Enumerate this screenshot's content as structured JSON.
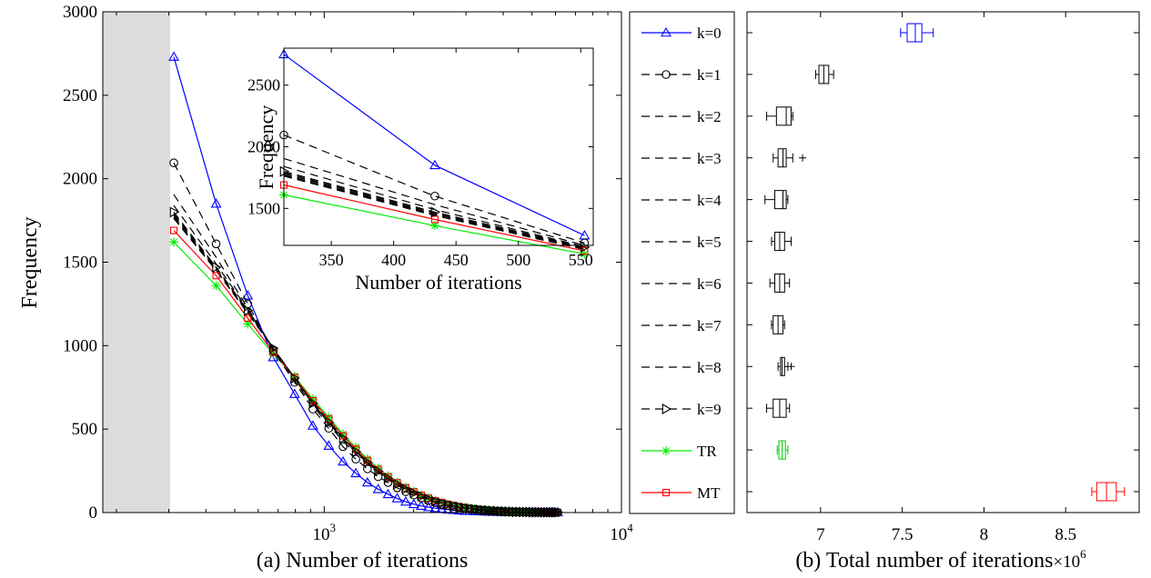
{
  "chart_data": [
    {
      "id": "a",
      "type": "line",
      "xlabel": "(a) Number of iterations",
      "ylabel": "Frequency",
      "xscale": "log",
      "xlim": [
        180,
        10000
      ],
      "ylim": [
        0,
        3000
      ],
      "xtick_labels": [
        "10",
        "10"
      ],
      "xtick_exponents": [
        "3",
        "4"
      ],
      "xticks": [
        1000,
        10000
      ],
      "yticks": [
        0,
        500,
        1000,
        1500,
        2000,
        2500,
        3000
      ],
      "ytick_labels": [
        "0",
        "500",
        "1000",
        "1500",
        "2000",
        "2500",
        "3000"
      ],
      "shaded_region": [
        180,
        312
      ],
      "x": [
        312,
        433,
        553,
        674,
        795,
        916,
        1036,
        1157,
        1278,
        1398,
        1519,
        1640,
        1760,
        1881,
        2002,
        2122,
        2243,
        2364,
        2485,
        2605,
        2726,
        2847,
        2967,
        3088,
        3209,
        3329,
        3450,
        3571,
        3691,
        3812,
        3933,
        4053,
        4174,
        4295,
        4416,
        4536,
        4657,
        4778,
        4898,
        5019,
        5140,
        5260,
        5381,
        5502,
        5622,
        5743,
        5864,
        5984,
        6105
      ],
      "series": [
        {
          "name": "k=0",
          "color": "#0000ff",
          "marker": "triangle-up",
          "values": [
            2730,
            1850,
            1300,
            930,
            710,
            520,
            400,
            305,
            235,
            180,
            140,
            110,
            85,
            65,
            50,
            40,
            32,
            26,
            22,
            18,
            15,
            12,
            10,
            9,
            8,
            7,
            6,
            5,
            5,
            4,
            4,
            3,
            3,
            3,
            2,
            2,
            2,
            2,
            2,
            2,
            1,
            1,
            1,
            1,
            1,
            1,
            1,
            1,
            1
          ]
        },
        {
          "name": "k=1",
          "color": "#000000",
          "marker": "circle",
          "values": [
            2095,
            1610,
            1250,
            970,
            780,
            620,
            505,
            395,
            320,
            262,
            215,
            180,
            148,
            125,
            105,
            87,
            72,
            60,
            50,
            42,
            35,
            30,
            25,
            21,
            18,
            15,
            13,
            11,
            9,
            8,
            7,
            6,
            5,
            5,
            4,
            4,
            3,
            3,
            3,
            2,
            2,
            2,
            2,
            2,
            1,
            1,
            1,
            1,
            1
          ]
        },
        {
          "name": "k=2",
          "color": "#000000",
          "marker": "none",
          "values": [
            1905,
            1530,
            1225,
            980,
            790,
            640,
            525,
            430,
            350,
            288,
            238,
            197,
            163,
            136,
            113,
            94,
            78,
            65,
            54,
            45,
            38,
            32,
            27,
            23,
            19,
            16,
            14,
            12,
            10,
            9,
            7,
            6,
            5,
            5,
            4,
            4,
            3,
            3,
            3,
            2,
            2,
            2,
            2,
            1,
            1,
            1,
            1,
            1,
            1
          ]
        },
        {
          "name": "k=3",
          "color": "#000000",
          "marker": "none",
          "values": [
            1840,
            1490,
            1215,
            985,
            800,
            650,
            535,
            440,
            360,
            297,
            245,
            203,
            168,
            140,
            117,
            97,
            81,
            67,
            56,
            47,
            40,
            33,
            28,
            24,
            20,
            17,
            14,
            12,
            10,
            9,
            8,
            7,
            6,
            5,
            4,
            4,
            3,
            3,
            3,
            2,
            2,
            2,
            2,
            1,
            1,
            1,
            1,
            1,
            1
          ]
        },
        {
          "name": "k=4",
          "color": "#000000",
          "marker": "none",
          "values": [
            1790,
            1465,
            1205,
            985,
            805,
            655,
            540,
            445,
            365,
            301,
            249,
            206,
            171,
            142,
            119,
            99,
            82,
            69,
            57,
            48,
            40,
            34,
            29,
            24,
            20,
            17,
            15,
            13,
            11,
            9,
            8,
            7,
            6,
            5,
            4,
            4,
            3,
            3,
            3,
            2,
            2,
            2,
            2,
            1,
            1,
            1,
            1,
            1,
            1
          ]
        },
        {
          "name": "k=5",
          "color": "#000000",
          "marker": "none",
          "values": [
            1780,
            1460,
            1200,
            985,
            805,
            660,
            545,
            448,
            368,
            303,
            250,
            208,
            172,
            143,
            120,
            100,
            83,
            69,
            58,
            48,
            41,
            34,
            29,
            24,
            21,
            17,
            15,
            13,
            11,
            9,
            8,
            7,
            6,
            5,
            4,
            4,
            3,
            3,
            3,
            2,
            2,
            2,
            2,
            1,
            1,
            1,
            1,
            1,
            1
          ]
        },
        {
          "name": "k=6",
          "color": "#000000",
          "marker": "none",
          "values": [
            1770,
            1455,
            1198,
            985,
            806,
            661,
            546,
            449,
            369,
            304,
            251,
            208,
            173,
            144,
            120,
            100,
            83,
            70,
            58,
            49,
            41,
            34,
            29,
            25,
            21,
            18,
            15,
            13,
            11,
            9,
            8,
            7,
            6,
            5,
            4,
            4,
            3,
            3,
            3,
            2,
            2,
            2,
            2,
            1,
            1,
            1,
            1,
            1,
            1
          ]
        },
        {
          "name": "k=7",
          "color": "#000000",
          "marker": "none",
          "values": [
            1765,
            1452,
            1196,
            984,
            806,
            662,
            547,
            450,
            370,
            305,
            252,
            209,
            173,
            144,
            121,
            101,
            84,
            70,
            58,
            49,
            41,
            35,
            29,
            25,
            21,
            18,
            15,
            13,
            11,
            9,
            8,
            7,
            6,
            5,
            4,
            4,
            3,
            3,
            3,
            2,
            2,
            2,
            2,
            1,
            1,
            1,
            1,
            1,
            1
          ]
        },
        {
          "name": "k=8",
          "color": "#000000",
          "marker": "none",
          "values": [
            1762,
            1450,
            1195,
            984,
            806,
            662,
            547,
            450,
            370,
            305,
            252,
            209,
            173,
            145,
            121,
            101,
            84,
            70,
            58,
            49,
            41,
            35,
            29,
            25,
            21,
            18,
            15,
            13,
            11,
            9,
            8,
            7,
            6,
            5,
            4,
            4,
            3,
            3,
            3,
            2,
            2,
            2,
            2,
            1,
            1,
            1,
            1,
            1,
            1
          ]
        },
        {
          "name": "k=9",
          "color": "#000000",
          "marker": "triangle-right",
          "values": [
            1800,
            1470,
            1210,
            985,
            805,
            655,
            540,
            445,
            365,
            300,
            248,
            205,
            170,
            142,
            118,
            98,
            82,
            68,
            57,
            48,
            40,
            34,
            28,
            24,
            20,
            17,
            14,
            12,
            10,
            9,
            8,
            7,
            6,
            5,
            4,
            4,
            3,
            3,
            3,
            2,
            2,
            2,
            2,
            1,
            1,
            1,
            1,
            1,
            1
          ]
        },
        {
          "name": "TR",
          "color": "#00ee00",
          "marker": "star",
          "values": [
            1620,
            1360,
            1130,
            950,
            815,
            680,
            570,
            470,
            390,
            322,
            265,
            220,
            183,
            152,
            127,
            106,
            88,
            73,
            61,
            51,
            43,
            36,
            30,
            26,
            22,
            18,
            16,
            13,
            11,
            10,
            8,
            7,
            6,
            5,
            5,
            4,
            4,
            3,
            3,
            2,
            2,
            2,
            2,
            1,
            1,
            1,
            1,
            1,
            1
          ]
        },
        {
          "name": "MT",
          "color": "#ff0000",
          "marker": "square",
          "values": [
            1690,
            1420,
            1165,
            960,
            810,
            670,
            560,
            460,
            380,
            312,
            258,
            214,
            178,
            148,
            124,
            103,
            86,
            71,
            60,
            50,
            42,
            35,
            30,
            25,
            21,
            18,
            15,
            13,
            11,
            9,
            8,
            7,
            6,
            5,
            4,
            4,
            3,
            3,
            3,
            2,
            2,
            2,
            2,
            1,
            1,
            1,
            1,
            1,
            1
          ]
        }
      ]
    },
    {
      "id": "inset",
      "type": "line",
      "xlabel": "Number of iterations",
      "ylabel": "Frequency",
      "xlim": [
        312,
        560
      ],
      "ylim": [
        1200,
        2800
      ],
      "xticks": [
        350,
        400,
        450,
        500,
        550
      ],
      "yticks": [
        1500,
        2000,
        2500
      ],
      "x": [
        312,
        433,
        553
      ],
      "series": [
        {
          "name": "k=0",
          "values": [
            2750,
            1850,
            1280
          ]
        },
        {
          "name": "k=1",
          "values": [
            2095,
            1600,
            1220
          ]
        },
        {
          "name": "k=2",
          "values": [
            1905,
            1530,
            1200
          ]
        },
        {
          "name": "k=3",
          "values": [
            1840,
            1490,
            1190
          ]
        },
        {
          "name": "k=4",
          "values": [
            1790,
            1465,
            1180
          ]
        },
        {
          "name": "k=5",
          "values": [
            1780,
            1455,
            1175
          ]
        },
        {
          "name": "k=6",
          "values": [
            1770,
            1450,
            1170
          ]
        },
        {
          "name": "k=7",
          "values": [
            1765,
            1445,
            1168
          ]
        },
        {
          "name": "k=8",
          "values": [
            1762,
            1442,
            1166
          ]
        },
        {
          "name": "k=9",
          "values": [
            1800,
            1470,
            1185
          ]
        },
        {
          "name": "TR",
          "values": [
            1610,
            1360,
            1130
          ]
        },
        {
          "name": "MT",
          "values": [
            1690,
            1410,
            1155
          ]
        }
      ]
    },
    {
      "id": "b",
      "type": "boxplot",
      "xlabel": "(b) Total number of iterations",
      "xlabel_multiplier": "×10",
      "xlabel_exponent": "6",
      "xlim": [
        6.55,
        8.95
      ],
      "xticks": [
        7,
        7.5,
        8,
        8.5
      ],
      "xtick_labels": [
        "7",
        "7.5",
        "8",
        "8.5"
      ],
      "boxes": [
        {
          "name": "k=0",
          "color": "#0000ff",
          "min": 7.49,
          "q1": 7.53,
          "median": 7.58,
          "q3": 7.62,
          "max": 7.69,
          "outliers": []
        },
        {
          "name": "k=1",
          "color": "#000000",
          "min": 6.97,
          "q1": 6.99,
          "median": 7.02,
          "q3": 7.05,
          "max": 7.08,
          "outliers": []
        },
        {
          "name": "k=2",
          "color": "#000000",
          "min": 6.67,
          "q1": 6.73,
          "median": 6.79,
          "q3": 6.82,
          "max": 6.83,
          "outliers": []
        },
        {
          "name": "k=3",
          "color": "#000000",
          "min": 6.71,
          "q1": 6.74,
          "median": 6.77,
          "q3": 6.79,
          "max": 6.83,
          "outliers": [
            6.89
          ]
        },
        {
          "name": "k=4",
          "color": "#000000",
          "min": 6.66,
          "q1": 6.72,
          "median": 6.77,
          "q3": 6.79,
          "max": 6.8,
          "outliers": []
        },
        {
          "name": "k=5",
          "color": "#000000",
          "min": 6.7,
          "q1": 6.72,
          "median": 6.75,
          "q3": 6.78,
          "max": 6.82,
          "outliers": []
        },
        {
          "name": "k=6",
          "color": "#000000",
          "min": 6.69,
          "q1": 6.72,
          "median": 6.75,
          "q3": 6.78,
          "max": 6.81,
          "outliers": []
        },
        {
          "name": "k=7",
          "color": "#000000",
          "min": 6.7,
          "q1": 6.71,
          "median": 6.74,
          "q3": 6.77,
          "max": 6.78,
          "outliers": []
        },
        {
          "name": "k=8",
          "color": "#000000",
          "min": 6.74,
          "q1": 6.755,
          "median": 6.765,
          "q3": 6.78,
          "max": 6.8,
          "outliers": [
            6.82
          ]
        },
        {
          "name": "k=9",
          "color": "#000000",
          "min": 6.67,
          "q1": 6.71,
          "median": 6.75,
          "q3": 6.79,
          "max": 6.81,
          "outliers": []
        },
        {
          "name": "TR",
          "color": "#00cc00",
          "min": 6.735,
          "q1": 6.745,
          "median": 6.765,
          "q3": 6.785,
          "max": 6.8,
          "outliers": []
        },
        {
          "name": "MT",
          "color": "#ff0000",
          "min": 8.66,
          "q1": 8.69,
          "median": 8.75,
          "q3": 8.81,
          "max": 8.86,
          "outliers": []
        }
      ]
    }
  ],
  "legend": {
    "placement": "between panels",
    "entries": [
      {
        "label": "k=0",
        "color": "#0000ff",
        "marker": "triangle-up",
        "dash": "solid"
      },
      {
        "label": "k=1",
        "color": "#000000",
        "marker": "circle",
        "dash": "dashed"
      },
      {
        "label": "k=2",
        "color": "#000000",
        "marker": "none",
        "dash": "dashed"
      },
      {
        "label": "k=3",
        "color": "#000000",
        "marker": "none",
        "dash": "dashed"
      },
      {
        "label": "k=4",
        "color": "#000000",
        "marker": "none",
        "dash": "dashed"
      },
      {
        "label": "k=5",
        "color": "#000000",
        "marker": "none",
        "dash": "dashed"
      },
      {
        "label": "k=6",
        "color": "#000000",
        "marker": "none",
        "dash": "dashed"
      },
      {
        "label": "k=7",
        "color": "#000000",
        "marker": "none",
        "dash": "dashed"
      },
      {
        "label": "k=8",
        "color": "#000000",
        "marker": "none",
        "dash": "dashed"
      },
      {
        "label": "k=9",
        "color": "#000000",
        "marker": "triangle-right",
        "dash": "dashed"
      },
      {
        "label": "TR",
        "color": "#00ee00",
        "marker": "star",
        "dash": "solid"
      },
      {
        "label": "MT",
        "color": "#ff0000",
        "marker": "square",
        "dash": "solid"
      }
    ]
  }
}
